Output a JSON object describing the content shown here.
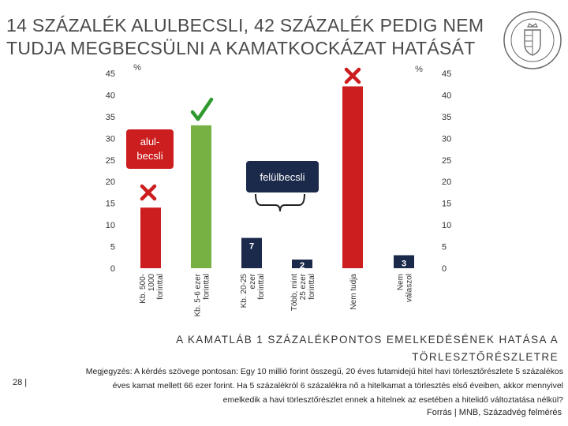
{
  "slide": {
    "title_line1": "14 SZÁZALÉK ALULBECSLI, 42 SZÁZALÉK PEDIG NEM",
    "title_line2": "TUDJA MEGBECSÜLNI A KAMATKOCKÁZAT HATÁSÁT",
    "subtitle_line1": "A KAMATLÁB 1 SZÁZALÉKPONTOS EMELKEDÉSÉNEK HATÁSA A",
    "subtitle_line2": "TÖRLESZTŐRÉSZLETRE",
    "note_line1": "Megjegyzés: A kérdés szövege pontosan: Egy 10 millió forint összegű, 20 éves futamidejű hitel havi törlesztőrészlete 5 százalékos",
    "note_line2": "éves kamat mellett 66 ezer forint. Ha 5 százalékról 6 százalékra nő a hitelkamat a törlesztés első éveiben, akkor mennyivel",
    "note_line3": "emelkedik a havi törlesztőrészlet ennek a hitelnek az esetében a hitelidő változtatása nélkül?",
    "page_number": "28 |",
    "source": "Forrás | MNB, Századvég felmérés"
  },
  "chart_data": {
    "type": "bar",
    "categories": [
      [
        "Kb. 500-",
        "1000",
        "forinttal"
      ],
      [
        "Kb. 5-6 ezer",
        "forinttal"
      ],
      [
        "Kb. 20-25",
        "ezer",
        "forinttal"
      ],
      [
        "Több, mint",
        "25 ezer",
        "forinttal"
      ],
      [
        "Nem tudja"
      ],
      [
        "Nem",
        "válaszol"
      ]
    ],
    "values": [
      14,
      33,
      7,
      2,
      42,
      3
    ],
    "bar_colors": [
      "#cc1e1e",
      "#77b043",
      "#1b2a4a",
      "#1b2a4a",
      "#cc1e1e",
      "#1b2a4a"
    ],
    "label_colors": [
      "#cc1e1e",
      "#77b043",
      "#ffffff",
      "#ffffff",
      "#cc1e1e",
      "#ffffff"
    ],
    "ylim": [
      0,
      45
    ],
    "yticks": [
      0,
      5,
      10,
      15,
      20,
      25,
      30,
      35,
      40,
      45
    ],
    "ylabel_left": "%",
    "ylabel_right": "%",
    "grid": false,
    "annotations": {
      "underestimate_label": [
        "alul-",
        "becsli"
      ],
      "overestimate_label": "felülbecsli"
    },
    "marker_colors": {
      "cross": "#cc1e1e",
      "check": "#2e9a2e",
      "callout_fill": "#cc1e1e",
      "callout_dark": "#1b2a4a"
    }
  }
}
